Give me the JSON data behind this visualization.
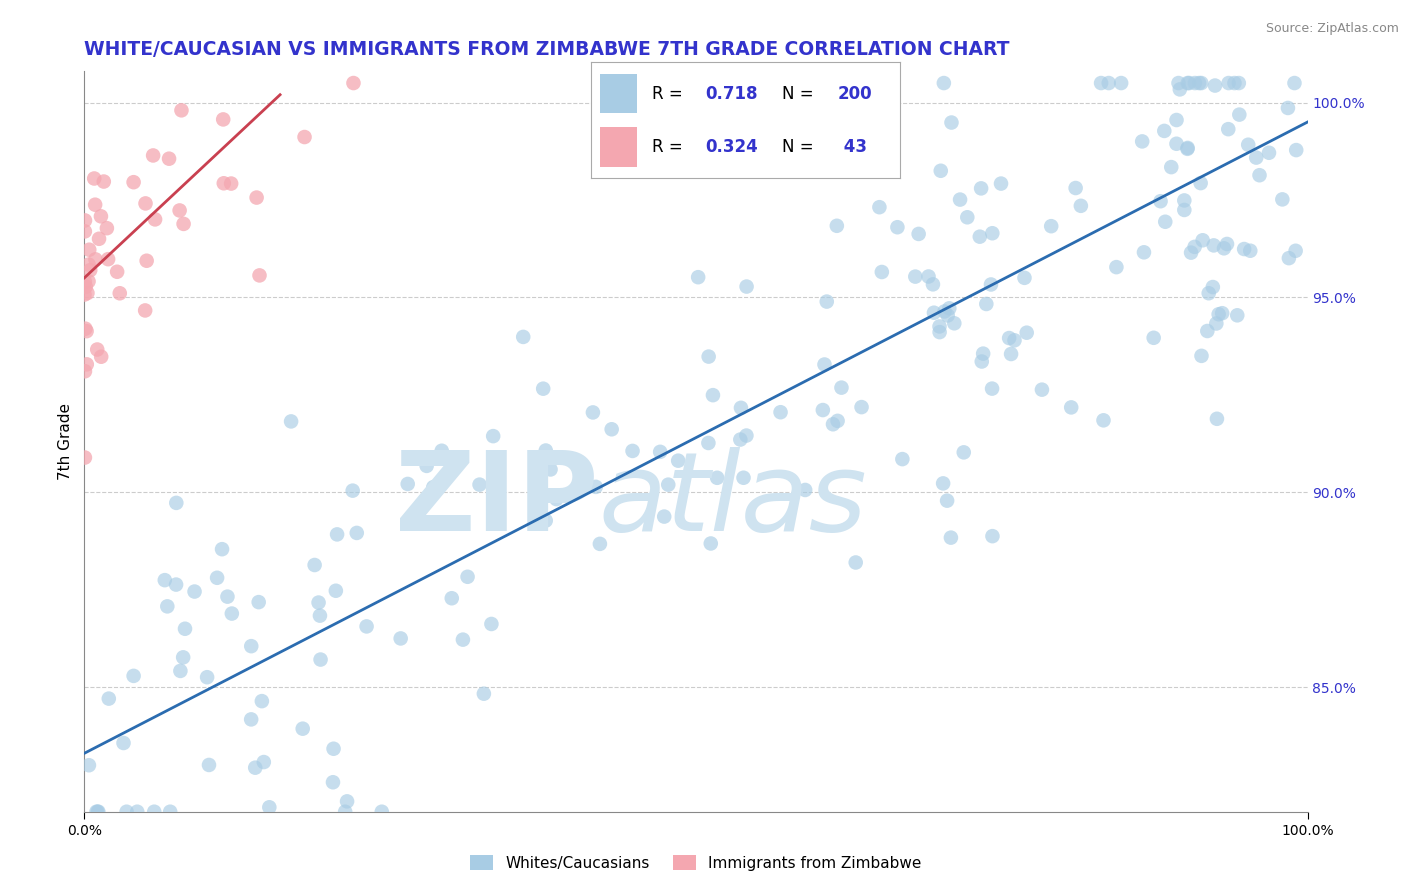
{
  "title": "WHITE/CAUCASIAN VS IMMIGRANTS FROM ZIMBABWE 7TH GRADE CORRELATION CHART",
  "source_text": "Source: ZipAtlas.com",
  "ylabel": "7th Grade",
  "legend_label_blue": "Whites/Caucasians",
  "legend_label_pink": "Immigrants from Zimbabwe",
  "R_blue": 0.718,
  "N_blue": 200,
  "R_pink": 0.324,
  "N_pink": 43,
  "blue_color": "#a8cce4",
  "blue_line_color": "#2b6cb0",
  "pink_color": "#f4a7b0",
  "pink_line_color": "#c94050",
  "xmin": 0.0,
  "xmax": 1.0,
  "ymin": 0.818,
  "ymax": 1.008,
  "right_yticks": [
    0.85,
    0.9,
    0.95,
    1.0
  ],
  "right_yticklabels": [
    "85.0%",
    "90.0%",
    "95.0%",
    "100.0%"
  ],
  "title_color": "#3333cc",
  "stats_color": "#3333cc",
  "title_fontsize": 13.5,
  "axis_label_fontsize": 11,
  "blue_line_y0": 0.833,
  "blue_line_y1": 0.995,
  "pink_line_x0": 0.0,
  "pink_line_x1": 0.16,
  "pink_line_y0": 0.955,
  "pink_line_y1": 1.002
}
